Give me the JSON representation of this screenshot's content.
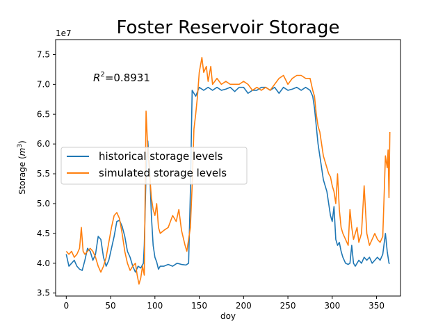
{
  "chart_data": {
    "type": "line",
    "title": "Foster Reservoir Storage",
    "xlabel": "doy",
    "ylabel": "Storage (m³)",
    "ylabel_base": "Storage (",
    "ylabel_unit": "m",
    "ylabel_exp": "3",
    "ylabel_close": ")",
    "offset_text": "1e7",
    "annotation": {
      "r_label": "R",
      "r_exp": "2",
      "value": "=0.8931"
    },
    "xlim": [
      -12,
      377
    ],
    "ylim": [
      3.45,
      7.75
    ],
    "x_ticks": [
      0,
      50,
      100,
      150,
      200,
      250,
      300,
      350
    ],
    "y_ticks": [
      3.5,
      4.0,
      4.5,
      5.0,
      5.5,
      6.0,
      6.5,
      7.0,
      7.5
    ],
    "legend_position": "center-left",
    "grid": false,
    "series": [
      {
        "name": "historical storage levels",
        "color": "#1f77b4",
        "x": [
          0,
          3,
          6,
          9,
          12,
          15,
          18,
          21,
          24,
          27,
          30,
          33,
          36,
          39,
          42,
          45,
          48,
          51,
          54,
          57,
          60,
          63,
          66,
          69,
          72,
          75,
          78,
          81,
          84,
          87,
          88,
          90,
          92,
          94,
          96,
          98,
          100,
          102,
          104,
          106,
          110,
          115,
          120,
          125,
          130,
          135,
          138,
          140,
          142,
          144,
          146,
          150,
          155,
          160,
          165,
          170,
          175,
          180,
          185,
          190,
          195,
          200,
          205,
          210,
          215,
          220,
          225,
          230,
          235,
          240,
          245,
          250,
          255,
          260,
          265,
          270,
          275,
          278,
          280,
          282,
          284,
          286,
          288,
          290,
          292,
          294,
          296,
          298,
          300,
          302,
          304,
          306,
          308,
          310,
          312,
          315,
          318,
          320,
          322,
          324,
          326,
          328,
          330,
          333,
          336,
          339,
          342,
          345,
          348,
          351,
          354,
          357,
          360,
          362,
          364,
          365
        ],
        "values": [
          4.15,
          3.95,
          4.0,
          4.05,
          3.95,
          3.9,
          3.88,
          4.05,
          4.25,
          4.2,
          4.05,
          4.15,
          4.45,
          4.4,
          4.1,
          3.95,
          4.05,
          4.25,
          4.45,
          4.7,
          4.72,
          4.62,
          4.45,
          4.2,
          4.1,
          3.95,
          3.85,
          3.95,
          3.92,
          4.0,
          4.3,
          5.5,
          6.05,
          5.6,
          4.8,
          4.3,
          4.1,
          4.02,
          3.9,
          3.95,
          3.95,
          3.98,
          3.95,
          4.0,
          3.98,
          3.97,
          4.0,
          5.2,
          6.9,
          6.85,
          6.8,
          6.95,
          6.9,
          6.95,
          6.9,
          6.95,
          6.9,
          6.92,
          6.95,
          6.88,
          6.95,
          6.95,
          6.85,
          6.9,
          6.9,
          6.95,
          6.95,
          6.9,
          6.95,
          6.85,
          6.95,
          6.9,
          6.92,
          6.95,
          6.9,
          6.95,
          6.9,
          6.8,
          6.6,
          6.3,
          6.0,
          5.8,
          5.6,
          5.4,
          5.3,
          5.2,
          5.0,
          4.8,
          4.7,
          4.95,
          4.4,
          4.3,
          4.35,
          4.2,
          4.1,
          4.0,
          3.98,
          4.0,
          4.3,
          4.0,
          3.95,
          4.0,
          4.05,
          4.0,
          4.1,
          4.05,
          4.1,
          4.0,
          4.05,
          4.1,
          4.05,
          4.15,
          4.5,
          4.2,
          4.0,
          4.0
        ]
      },
      {
        "name": "simulated storage levels",
        "color": "#ff7f0e",
        "x": [
          0,
          3,
          6,
          9,
          12,
          15,
          17,
          19,
          21,
          24,
          27,
          30,
          33,
          36,
          39,
          42,
          45,
          48,
          51,
          54,
          57,
          60,
          63,
          66,
          69,
          72,
          75,
          78,
          80,
          82,
          84,
          86,
          88,
          90,
          92,
          94,
          96,
          98,
          100,
          102,
          104,
          106,
          110,
          115,
          120,
          124,
          127,
          130,
          134,
          136,
          138,
          140,
          142,
          144,
          146,
          148,
          150,
          153,
          155,
          158,
          160,
          163,
          165,
          170,
          175,
          180,
          185,
          190,
          195,
          200,
          205,
          210,
          215,
          220,
          225,
          230,
          235,
          240,
          245,
          250,
          255,
          260,
          265,
          270,
          275,
          278,
          280,
          282,
          284,
          286,
          288,
          290,
          292,
          294,
          296,
          298,
          300,
          302,
          304,
          306,
          308,
          310,
          312,
          315,
          318,
          320,
          322,
          324,
          326,
          328,
          330,
          333,
          336,
          339,
          342,
          345,
          348,
          351,
          354,
          357,
          360,
          362,
          363,
          364,
          365
        ],
        "values": [
          4.2,
          4.15,
          4.2,
          4.1,
          4.15,
          4.25,
          4.6,
          4.2,
          4.15,
          4.2,
          4.25,
          4.2,
          4.1,
          3.95,
          3.85,
          3.95,
          4.1,
          4.35,
          4.6,
          4.8,
          4.85,
          4.75,
          4.5,
          4.2,
          4.0,
          3.88,
          3.95,
          4.0,
          3.8,
          3.65,
          3.75,
          3.95,
          3.8,
          6.55,
          5.9,
          5.5,
          5.1,
          4.9,
          4.8,
          5.0,
          4.6,
          4.5,
          4.55,
          4.6,
          4.8,
          4.7,
          4.9,
          4.55,
          4.3,
          4.2,
          4.4,
          4.6,
          5.3,
          6.25,
          6.5,
          6.8,
          7.2,
          7.45,
          7.2,
          7.3,
          7.05,
          7.3,
          7.0,
          7.1,
          7.0,
          7.05,
          7.0,
          7.0,
          7.0,
          7.05,
          7.0,
          6.9,
          6.95,
          6.9,
          6.95,
          6.9,
          7.0,
          7.1,
          7.15,
          7.0,
          7.1,
          7.15,
          7.15,
          7.1,
          7.1,
          6.9,
          6.8,
          6.5,
          6.3,
          6.2,
          6.0,
          5.8,
          5.7,
          5.6,
          5.5,
          5.45,
          5.3,
          5.2,
          5.0,
          5.5,
          4.9,
          4.6,
          4.5,
          4.4,
          4.3,
          4.9,
          4.6,
          4.4,
          4.5,
          4.6,
          4.35,
          4.5,
          5.3,
          4.5,
          4.3,
          4.4,
          4.5,
          4.4,
          4.35,
          4.45,
          5.8,
          5.6,
          5.9,
          5.1,
          6.2
        ]
      }
    ]
  }
}
